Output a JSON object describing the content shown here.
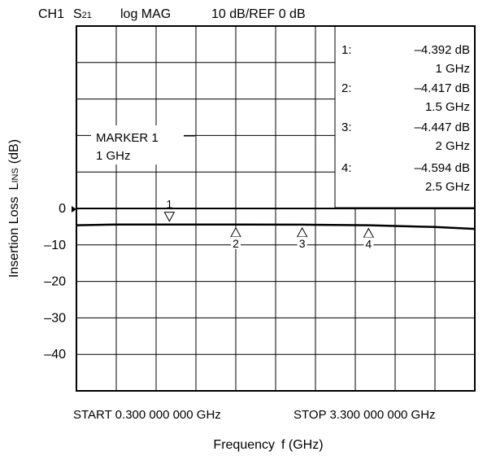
{
  "header": {
    "channel": "CH1",
    "param_main": "S",
    "param_sub": "21",
    "format": "log MAG",
    "scale": "10 dB/REF 0 dB"
  },
  "marker_table": [
    {
      "label": "1:",
      "value": "–4.392 dB",
      "freq": "1 GHz"
    },
    {
      "label": "2:",
      "value": "–4.417 dB",
      "freq": "1.5 GHz"
    },
    {
      "label": "3:",
      "value": "–4.447 dB",
      "freq": "2 GHz"
    },
    {
      "label": "4:",
      "value": "–4.594 dB",
      "freq": "2.5 GHz"
    }
  ],
  "annotation": {
    "line1": "MARKER 1",
    "line2": "1 GHz"
  },
  "chart_data": {
    "type": "line",
    "xlabel_main": "Frequency",
    "xlabel_unit": "f (GHz)",
    "ylabel_main": "Insertion Loss",
    "ylabel_sym": "L",
    "ylabel_sub": "INS",
    "ylabel_unit": "(dB)",
    "start_label": "START 0.300 000 000 GHz",
    "stop_label": "STOP 3.300 000 000 GHz",
    "xlim": [
      0.3,
      3.3
    ],
    "ylim": [
      -50,
      50
    ],
    "yticks": [
      {
        "value": 0,
        "label": "0"
      },
      {
        "value": -10,
        "label": "–10"
      },
      {
        "value": -20,
        "label": "–20"
      },
      {
        "value": -30,
        "label": "–30"
      },
      {
        "value": -40,
        "label": "–40"
      }
    ],
    "reference_level": 0,
    "grid": true,
    "series": [
      {
        "x": [
          0.3,
          0.6,
          1.0,
          1.5,
          2.0,
          2.5,
          3.0,
          3.3
        ],
        "y": [
          -4.6,
          -4.4,
          -4.392,
          -4.417,
          -4.447,
          -4.594,
          -5.1,
          -5.6
        ]
      }
    ],
    "markers": [
      {
        "id": "1",
        "x": 1.0,
        "y": -4.392,
        "direction": "down"
      },
      {
        "id": "2",
        "x": 1.5,
        "y": -4.417,
        "direction": "up"
      },
      {
        "id": "3",
        "x": 2.0,
        "y": -4.447,
        "direction": "up"
      },
      {
        "id": "4",
        "x": 2.5,
        "y": -4.594,
        "direction": "up"
      }
    ]
  }
}
